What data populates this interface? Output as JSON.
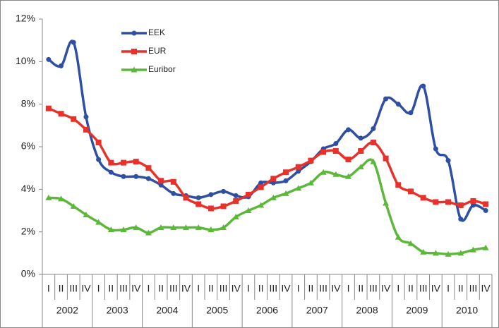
{
  "chart_data": {
    "type": "line",
    "categories": [
      "I",
      "II",
      "III",
      "IV",
      "I",
      "II",
      "III",
      "IV",
      "I",
      "II",
      "III",
      "IV",
      "I",
      "II",
      "III",
      "IV",
      "I",
      "II",
      "III",
      "IV",
      "I",
      "II",
      "III",
      "IV",
      "I",
      "II",
      "III",
      "IV",
      "I",
      "II",
      "III",
      "IV",
      "I",
      "II",
      "III",
      "IV"
    ],
    "year_groups": [
      "2002",
      "2003",
      "2004",
      "2005",
      "2006",
      "2007",
      "2008",
      "2009",
      "2010"
    ],
    "series": [
      {
        "name": "EEK",
        "color": "#2e4fa3",
        "marker": "circle",
        "values": [
          10.1,
          9.8,
          10.9,
          7.4,
          5.4,
          4.8,
          4.6,
          4.6,
          4.5,
          4.2,
          3.8,
          3.7,
          3.6,
          3.75,
          3.9,
          3.7,
          3.65,
          4.3,
          4.3,
          4.4,
          4.85,
          5.3,
          5.9,
          6.15,
          6.8,
          6.4,
          6.85,
          8.25,
          8.0,
          7.6,
          8.85,
          5.9,
          5.35,
          2.6,
          3.25,
          3.0
        ]
      },
      {
        "name": "EUR",
        "color": "#e8312a",
        "marker": "square",
        "values": [
          7.8,
          7.55,
          7.3,
          6.8,
          6.2,
          5.25,
          5.25,
          5.3,
          5.0,
          4.4,
          4.35,
          3.6,
          3.3,
          3.1,
          3.2,
          3.45,
          3.75,
          4.1,
          4.5,
          4.8,
          5.05,
          5.35,
          5.75,
          5.8,
          5.4,
          5.8,
          6.2,
          5.45,
          4.2,
          3.9,
          3.6,
          3.4,
          3.4,
          3.25,
          3.45,
          3.3
        ]
      },
      {
        "name": "Euribor",
        "color": "#5cb83a",
        "marker": "triangle",
        "values": [
          3.6,
          3.55,
          3.2,
          2.8,
          2.45,
          2.1,
          2.1,
          2.2,
          1.95,
          2.2,
          2.2,
          2.2,
          2.2,
          2.1,
          2.2,
          2.7,
          3.0,
          3.25,
          3.6,
          3.8,
          4.05,
          4.3,
          4.8,
          4.7,
          4.6,
          5.05,
          5.3,
          3.35,
          1.75,
          1.45,
          1.05,
          1.0,
          0.95,
          1.0,
          1.15,
          1.25
        ]
      }
    ],
    "ylim": [
      0,
      12
    ],
    "yticks": [
      {
        "value": 0,
        "label": "0%"
      },
      {
        "value": 2,
        "label": "2%"
      },
      {
        "value": 4,
        "label": "4%"
      },
      {
        "value": 6,
        "label": "6%"
      },
      {
        "value": 8,
        "label": "8%"
      },
      {
        "value": 10,
        "label": "10%"
      },
      {
        "value": 12,
        "label": "12%"
      }
    ],
    "legend": "upper left"
  }
}
